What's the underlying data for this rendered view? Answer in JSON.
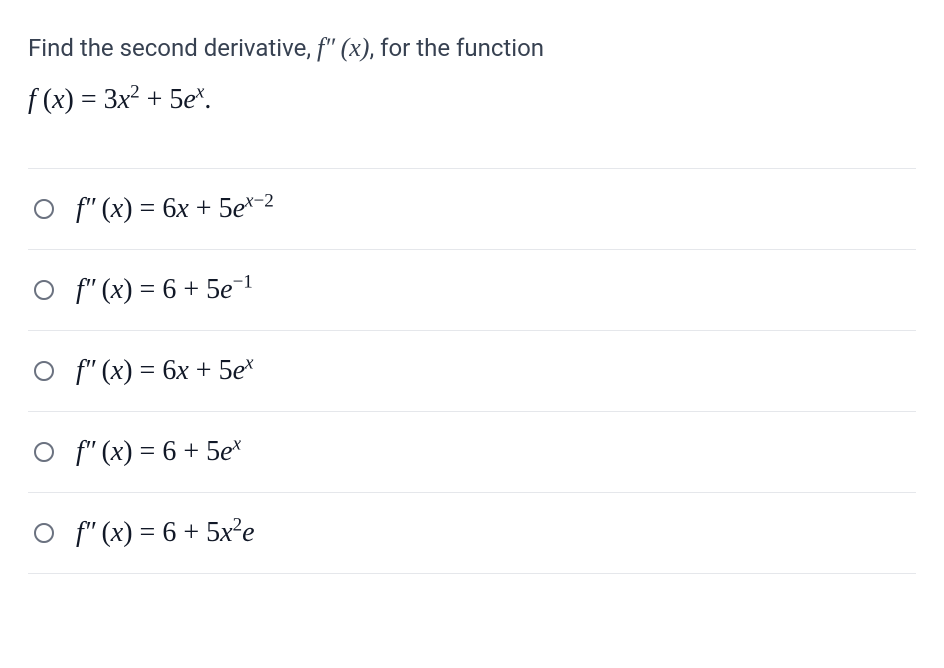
{
  "colors": {
    "text_primary": "#374151",
    "text_math": "#111827",
    "border": "#e5e7eb",
    "radio_border": "#6b7280",
    "background": "#ffffff"
  },
  "typography": {
    "body_fontsize": 24,
    "math_fontsize": 28,
    "superscript_scale": 0.68
  },
  "question": {
    "prefix": "Find the second derivative, ",
    "math_expr": "f″ (x)",
    "suffix": ", for the function",
    "function_def": "f (x) = 3x² + 5eˣ.",
    "function_def_parts": {
      "lhs_f": "f",
      "lhs_paren_open": " (",
      "lhs_var": "x",
      "lhs_paren_close": ") = 3",
      "x": "x",
      "exp2": "2",
      "plus": " + 5",
      "e": "e",
      "expx": "x",
      "period": "."
    }
  },
  "options": [
    {
      "id": "option-a",
      "lhs": "f″ (x) = ",
      "rhs_parts": {
        "a1": "6",
        "x1": "x",
        "a2": " + 5",
        "e": "e",
        "exp": "x−2"
      }
    },
    {
      "id": "option-b",
      "lhs": "f″ (x) = ",
      "rhs_parts": {
        "a1": "6 + 5",
        "e": "e",
        "exp": "−1"
      }
    },
    {
      "id": "option-c",
      "lhs": "f″ (x) = ",
      "rhs_parts": {
        "a1": "6",
        "x1": "x",
        "a2": " + 5",
        "e": "e",
        "exp": "x"
      }
    },
    {
      "id": "option-d",
      "lhs": "f″ (x) = ",
      "rhs_parts": {
        "a1": "6 + 5",
        "e": "e",
        "exp": "x"
      }
    },
    {
      "id": "option-e",
      "lhs": "f″ (x) = ",
      "rhs_parts": {
        "a1": "6 + 5",
        "x1": "x",
        "exp_after_x": "2",
        "e": "e"
      }
    }
  ]
}
